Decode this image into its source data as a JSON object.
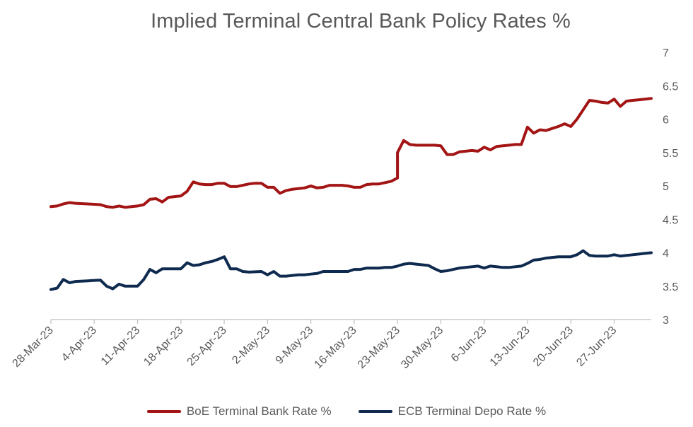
{
  "chart_data": {
    "type": "line",
    "title": "Implied Terminal Central Bank Policy Rates %",
    "xlabel": "",
    "ylabel": "",
    "ylim": [
      3,
      7
    ],
    "yticks": [
      "3",
      "3.5",
      "4",
      "4.5",
      "5",
      "5.5",
      "6",
      "6.5",
      "7"
    ],
    "x_start": "28-Mar-23",
    "x_end": "3-Jul-23",
    "x_tick_labels": [
      "28-Mar-23",
      "4-Apr-23",
      "11-Apr-23",
      "18-Apr-23",
      "25-Apr-23",
      "2-May-23",
      "9-May-23",
      "16-May-23",
      "23-May-23",
      "30-May-23",
      "6-Jun-23",
      "13-Jun-23",
      "20-Jun-23",
      "27-Jun-23"
    ],
    "grid": false,
    "legend_position": "bottom",
    "series": [
      {
        "name": "BoE Terminal Bank Rate %",
        "color": "#a31515",
        "points": [
          [
            "28-Mar-23",
            4.69
          ],
          [
            "29-Mar-23",
            4.7
          ],
          [
            "30-Mar-23",
            4.73
          ],
          [
            "31-Mar-23",
            4.75
          ],
          [
            "1-Apr-23",
            4.74
          ],
          [
            "3-Apr-23",
            4.73
          ],
          [
            "5-Apr-23",
            4.72
          ],
          [
            "6-Apr-23",
            4.69
          ],
          [
            "7-Apr-23",
            4.68
          ],
          [
            "8-Apr-23",
            4.7
          ],
          [
            "9-Apr-23",
            4.68
          ],
          [
            "11-Apr-23",
            4.7
          ],
          [
            "12-Apr-23",
            4.72
          ],
          [
            "13-Apr-23",
            4.8
          ],
          [
            "14-Apr-23",
            4.81
          ],
          [
            "15-Apr-23",
            4.76
          ],
          [
            "16-Apr-23",
            4.83
          ],
          [
            "17-Apr-23",
            4.84
          ],
          [
            "18-Apr-23",
            4.85
          ],
          [
            "19-Apr-23",
            4.92
          ],
          [
            "20-Apr-23",
            5.06
          ],
          [
            "21-Apr-23",
            5.03
          ],
          [
            "22-Apr-23",
            5.02
          ],
          [
            "23-Apr-23",
            5.02
          ],
          [
            "24-Apr-23",
            5.04
          ],
          [
            "25-Apr-23",
            5.04
          ],
          [
            "26-Apr-23",
            4.99
          ],
          [
            "27-Apr-23",
            4.99
          ],
          [
            "28-Apr-23",
            5.01
          ],
          [
            "29-Apr-23",
            5.03
          ],
          [
            "30-Apr-23",
            5.04
          ],
          [
            "1-May-23",
            5.04
          ],
          [
            "2-May-23",
            4.98
          ],
          [
            "3-May-23",
            4.98
          ],
          [
            "4-May-23",
            4.89
          ],
          [
            "5-May-23",
            4.93
          ],
          [
            "6-May-23",
            4.95
          ],
          [
            "7-May-23",
            4.96
          ],
          [
            "8-May-23",
            4.97
          ],
          [
            "9-May-23",
            5.0
          ],
          [
            "10-May-23",
            4.97
          ],
          [
            "11-May-23",
            4.98
          ],
          [
            "12-May-23",
            5.01
          ],
          [
            "13-May-23",
            5.01
          ],
          [
            "14-May-23",
            5.01
          ],
          [
            "15-May-23",
            5.0
          ],
          [
            "16-May-23",
            4.98
          ],
          [
            "17-May-23",
            4.98
          ],
          [
            "18-May-23",
            5.02
          ],
          [
            "19-May-23",
            5.03
          ],
          [
            "20-May-23",
            5.03
          ],
          [
            "21-May-23",
            5.05
          ],
          [
            "22-May-23",
            5.07
          ],
          [
            "23-May-23",
            5.12
          ],
          [
            "23-May-23",
            5.5
          ],
          [
            "24-May-23",
            5.68
          ],
          [
            "25-May-23",
            5.62
          ],
          [
            "26-May-23",
            5.61
          ],
          [
            "28-May-23",
            5.61
          ],
          [
            "29-May-23",
            5.61
          ],
          [
            "30-May-23",
            5.6
          ],
          [
            "31-May-23",
            5.47
          ],
          [
            "1-Jun-23",
            5.47
          ],
          [
            "2-Jun-23",
            5.51
          ],
          [
            "3-Jun-23",
            5.52
          ],
          [
            "4-Jun-23",
            5.53
          ],
          [
            "5-Jun-23",
            5.52
          ],
          [
            "6-Jun-23",
            5.58
          ],
          [
            "7-Jun-23",
            5.54
          ],
          [
            "8-Jun-23",
            5.59
          ],
          [
            "9-Jun-23",
            5.6
          ],
          [
            "10-Jun-23",
            5.61
          ],
          [
            "11-Jun-23",
            5.62
          ],
          [
            "12-Jun-23",
            5.62
          ],
          [
            "13-Jun-23",
            5.88
          ],
          [
            "14-Jun-23",
            5.79
          ],
          [
            "15-Jun-23",
            5.84
          ],
          [
            "16-Jun-23",
            5.83
          ],
          [
            "17-Jun-23",
            5.86
          ],
          [
            "18-Jun-23",
            5.89
          ],
          [
            "19-Jun-23",
            5.93
          ],
          [
            "20-Jun-23",
            5.89
          ],
          [
            "21-Jun-23",
            6.0
          ],
          [
            "22-Jun-23",
            6.14
          ],
          [
            "23-Jun-23",
            6.28
          ],
          [
            "24-Jun-23",
            6.27
          ],
          [
            "25-Jun-23",
            6.25
          ],
          [
            "26-Jun-23",
            6.24
          ],
          [
            "27-Jun-23",
            6.3
          ],
          [
            "28-Jun-23",
            6.19
          ],
          [
            "29-Jun-23",
            6.27
          ],
          [
            "30-Jun-23",
            6.28
          ],
          [
            "1-Jul-23",
            6.29
          ],
          [
            "2-Jul-23",
            6.3
          ],
          [
            "3-Jul-23",
            6.31
          ]
        ]
      },
      {
        "name": "ECB Terminal Depo Rate %",
        "color": "#0f2a4f",
        "points": [
          [
            "28-Mar-23",
            3.45
          ],
          [
            "29-Mar-23",
            3.47
          ],
          [
            "30-Mar-23",
            3.6
          ],
          [
            "31-Mar-23",
            3.55
          ],
          [
            "1-Apr-23",
            3.57
          ],
          [
            "3-Apr-23",
            3.58
          ],
          [
            "5-Apr-23",
            3.59
          ],
          [
            "6-Apr-23",
            3.5
          ],
          [
            "7-Apr-23",
            3.46
          ],
          [
            "8-Apr-23",
            3.53
          ],
          [
            "9-Apr-23",
            3.5
          ],
          [
            "11-Apr-23",
            3.5
          ],
          [
            "12-Apr-23",
            3.6
          ],
          [
            "13-Apr-23",
            3.75
          ],
          [
            "14-Apr-23",
            3.7
          ],
          [
            "15-Apr-23",
            3.76
          ],
          [
            "16-Apr-23",
            3.76
          ],
          [
            "18-Apr-23",
            3.76
          ],
          [
            "19-Apr-23",
            3.85
          ],
          [
            "20-Apr-23",
            3.81
          ],
          [
            "21-Apr-23",
            3.82
          ],
          [
            "22-Apr-23",
            3.85
          ],
          [
            "23-Apr-23",
            3.87
          ],
          [
            "24-Apr-23",
            3.9
          ],
          [
            "25-Apr-23",
            3.94
          ],
          [
            "26-Apr-23",
            3.76
          ],
          [
            "27-Apr-23",
            3.76
          ],
          [
            "28-Apr-23",
            3.72
          ],
          [
            "29-Apr-23",
            3.71
          ],
          [
            "1-May-23",
            3.72
          ],
          [
            "2-May-23",
            3.67
          ],
          [
            "3-May-23",
            3.72
          ],
          [
            "4-May-23",
            3.65
          ],
          [
            "5-May-23",
            3.65
          ],
          [
            "6-May-23",
            3.66
          ],
          [
            "7-May-23",
            3.67
          ],
          [
            "8-May-23",
            3.67
          ],
          [
            "9-May-23",
            3.68
          ],
          [
            "10-May-23",
            3.69
          ],
          [
            "11-May-23",
            3.72
          ],
          [
            "12-May-23",
            3.72
          ],
          [
            "13-May-23",
            3.72
          ],
          [
            "14-May-23",
            3.72
          ],
          [
            "15-May-23",
            3.72
          ],
          [
            "16-May-23",
            3.75
          ],
          [
            "17-May-23",
            3.75
          ],
          [
            "18-May-23",
            3.77
          ],
          [
            "19-May-23",
            3.77
          ],
          [
            "20-May-23",
            3.77
          ],
          [
            "21-May-23",
            3.78
          ],
          [
            "22-May-23",
            3.78
          ],
          [
            "23-May-23",
            3.8
          ],
          [
            "24-May-23",
            3.83
          ],
          [
            "25-May-23",
            3.84
          ],
          [
            "26-May-23",
            3.83
          ],
          [
            "28-May-23",
            3.81
          ],
          [
            "29-May-23",
            3.76
          ],
          [
            "30-May-23",
            3.72
          ],
          [
            "31-May-23",
            3.73
          ],
          [
            "1-Jun-23",
            3.75
          ],
          [
            "2-Jun-23",
            3.77
          ],
          [
            "3-Jun-23",
            3.78
          ],
          [
            "4-Jun-23",
            3.79
          ],
          [
            "5-Jun-23",
            3.8
          ],
          [
            "6-Jun-23",
            3.77
          ],
          [
            "7-Jun-23",
            3.8
          ],
          [
            "8-Jun-23",
            3.79
          ],
          [
            "9-Jun-23",
            3.78
          ],
          [
            "10-Jun-23",
            3.78
          ],
          [
            "11-Jun-23",
            3.79
          ],
          [
            "12-Jun-23",
            3.8
          ],
          [
            "13-Jun-23",
            3.84
          ],
          [
            "14-Jun-23",
            3.89
          ],
          [
            "15-Jun-23",
            3.9
          ],
          [
            "16-Jun-23",
            3.92
          ],
          [
            "17-Jun-23",
            3.93
          ],
          [
            "18-Jun-23",
            3.94
          ],
          [
            "19-Jun-23",
            3.94
          ],
          [
            "20-Jun-23",
            3.94
          ],
          [
            "21-Jun-23",
            3.97
          ],
          [
            "22-Jun-23",
            4.03
          ],
          [
            "23-Jun-23",
            3.96
          ],
          [
            "24-Jun-23",
            3.95
          ],
          [
            "25-Jun-23",
            3.95
          ],
          [
            "26-Jun-23",
            3.95
          ],
          [
            "27-Jun-23",
            3.97
          ],
          [
            "28-Jun-23",
            3.95
          ],
          [
            "29-Jun-23",
            3.96
          ],
          [
            "30-Jun-23",
            3.97
          ],
          [
            "1-Jul-23",
            3.98
          ],
          [
            "2-Jul-23",
            3.99
          ],
          [
            "3-Jul-23",
            4.0
          ]
        ]
      }
    ]
  }
}
